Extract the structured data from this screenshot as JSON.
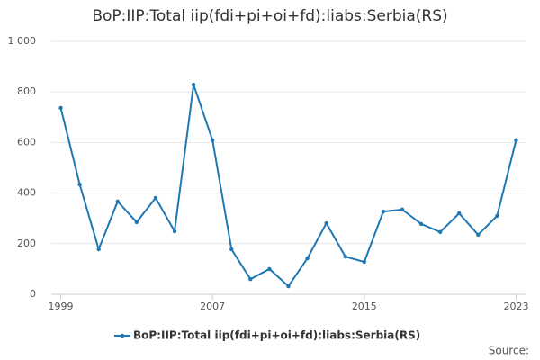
{
  "chart_data": {
    "type": "line",
    "title": "BoP:IIP:Total iip(fdi+pi+oi+fd):liabs:Serbia(RS)",
    "x": [
      1999,
      2000,
      2001,
      2002,
      2003,
      2004,
      2005,
      2006,
      2007,
      2008,
      2009,
      2010,
      2011,
      2012,
      2013,
      2014,
      2015,
      2016,
      2017,
      2018,
      2019,
      2020,
      2021,
      2022,
      2023
    ],
    "series": [
      {
        "name": "BoP:IIP:Total iip(fdi+pi+oi+fd):liabs:Serbia(RS)",
        "color": "#1f77b4",
        "values": [
          737,
          434,
          178,
          367,
          285,
          381,
          249,
          829,
          609,
          178,
          60,
          100,
          32,
          142,
          281,
          149,
          128,
          327,
          335,
          278,
          246,
          320,
          235,
          310,
          609
        ]
      }
    ],
    "xlim": [
      1998.5,
      2023.5
    ],
    "xticks": [
      1999,
      2007,
      2015,
      2023
    ],
    "ylim": [
      0,
      1000
    ],
    "yticks": [
      0,
      200,
      400,
      600,
      800,
      {
        "value": 1000,
        "label": "1 000"
      }
    ],
    "grid": true,
    "legend": "bottom",
    "source": "Source:"
  }
}
